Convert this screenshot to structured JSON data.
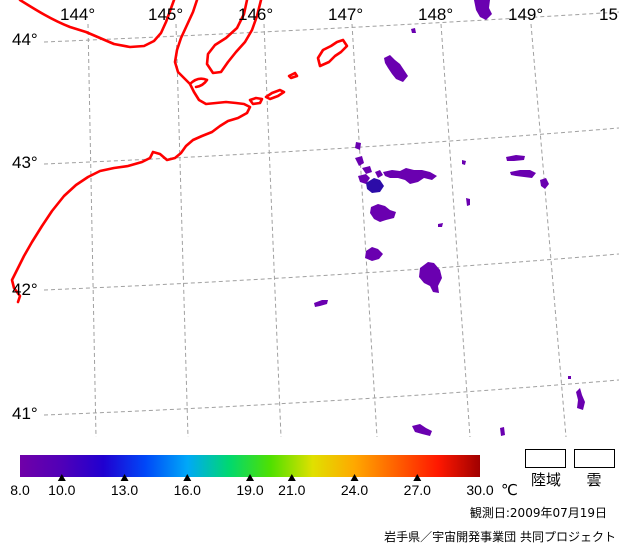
{
  "map": {
    "lon_labels": [
      "144°",
      "145°",
      "146°",
      "147°",
      "148°",
      "149°",
      "15"
    ],
    "lat_labels": [
      "44°",
      "43°",
      "42°",
      "41°"
    ]
  },
  "colors": {
    "background": "#ffffff",
    "coastline": "#ff0000",
    "graticule": "#a0a0a0",
    "sst_patch": "#6a00b0",
    "sst_patch_cold": "#2c0ca8"
  },
  "colorbar": {
    "min": 8.0,
    "max": 30.0,
    "unit": "℃",
    "ticks": [
      {
        "value": 8.0,
        "label": "8.0"
      },
      {
        "value": 10.0,
        "label": "10.0"
      },
      {
        "value": 13.0,
        "label": "13.0"
      },
      {
        "value": 16.0,
        "label": "16.0"
      },
      {
        "value": 19.0,
        "label": "19.0"
      },
      {
        "value": 21.0,
        "label": "21.0"
      },
      {
        "value": 24.0,
        "label": "24.0"
      },
      {
        "value": 27.0,
        "label": "27.0"
      },
      {
        "value": 30.0,
        "label": "30.0"
      }
    ],
    "gradient_colors": [
      "#7000a8",
      "#5000b8",
      "#2000d0",
      "#0048f8",
      "#00a8f8",
      "#00d870",
      "#50e000",
      "#e0e000",
      "#ffa800",
      "#ff6000",
      "#ff1800",
      "#a00000"
    ]
  },
  "legend": {
    "land_label": "陸域",
    "cloud_label": "雲",
    "land_color": "#ffffff",
    "cloud_color": "#ffffff"
  },
  "footer": {
    "observation_date": "観測日:2009年07月19日",
    "credit": "岩手県／宇宙開発事業団 共同プロジェクト"
  }
}
